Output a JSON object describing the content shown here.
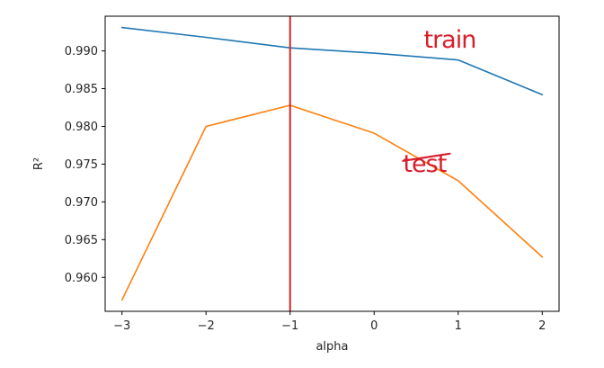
{
  "chart_data": {
    "type": "line",
    "title": "",
    "xlabel": "alpha",
    "ylabel": "R²",
    "xlim": [
      -3.2,
      2.2
    ],
    "ylim": [
      0.9555,
      0.9946
    ],
    "x_ticks": [
      -3,
      -2,
      -1,
      0,
      1,
      2
    ],
    "x_tick_labels": [
      "−3",
      "−2",
      "−1",
      "0",
      "1",
      "2"
    ],
    "y_ticks": [
      0.96,
      0.965,
      0.97,
      0.975,
      0.98,
      0.985,
      0.99
    ],
    "y_tick_labels": [
      "0.960",
      "0.965",
      "0.970",
      "0.975",
      "0.980",
      "0.985",
      "0.990"
    ],
    "grid": false,
    "x": [
      -3,
      -2,
      -1,
      0,
      1,
      2
    ],
    "series": [
      {
        "values": [
          0.9931,
          0.9918,
          0.9904,
          0.9897,
          0.9888,
          0.9842
        ],
        "color": "#1f77b4"
      },
      {
        "values": [
          0.957,
          0.98,
          0.9828,
          0.9791,
          0.9728,
          0.9627
        ],
        "color": "#ff7f0e"
      }
    ],
    "vertical_line": {
      "x": -1,
      "color": "#d62728"
    },
    "annotations": [
      {
        "text": "train",
        "x": 0.9,
        "y": 0.9904,
        "color": "#d91e2b"
      },
      {
        "text": "test",
        "x": 0.6,
        "y": 0.974,
        "color": "#d91e2b"
      }
    ],
    "axis_color": "#000000",
    "background": "#ffffff"
  }
}
